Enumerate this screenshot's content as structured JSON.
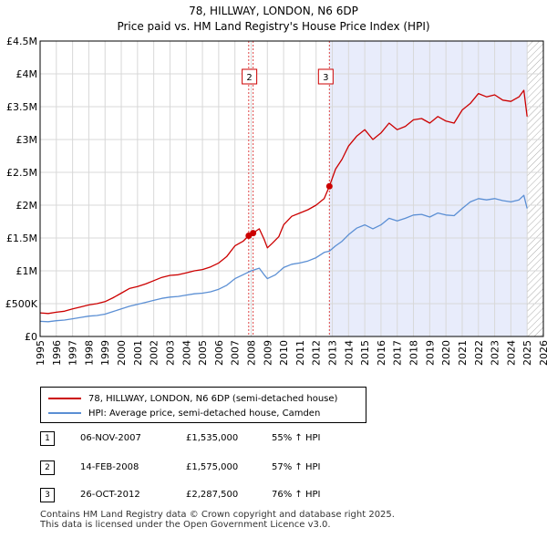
{
  "chart_data": {
    "type": "line",
    "title": "78, HILLWAY, LONDON, N6 6DP",
    "subtitle": "Price paid vs. HM Land Registry's House Price Index (HPI)",
    "xlim": [
      1995,
      2026
    ],
    "ylim": [
      0,
      4500000
    ],
    "x_ticks": [
      1995,
      1996,
      1997,
      1998,
      1999,
      2000,
      2001,
      2002,
      2003,
      2004,
      2005,
      2006,
      2007,
      2008,
      2009,
      2010,
      2011,
      2012,
      2013,
      2014,
      2015,
      2016,
      2017,
      2018,
      2019,
      2020,
      2021,
      2022,
      2023,
      2024,
      2025,
      2026
    ],
    "y_ticks": [
      {
        "value": 0,
        "label": "£0"
      },
      {
        "value": 500000,
        "label": "£500K"
      },
      {
        "value": 1000000,
        "label": "£1M"
      },
      {
        "value": 1500000,
        "label": "£1.5M"
      },
      {
        "value": 2000000,
        "label": "£2M"
      },
      {
        "value": 2500000,
        "label": "£2.5M"
      },
      {
        "value": 3000000,
        "label": "£3M"
      },
      {
        "value": 3500000,
        "label": "£3.5M"
      },
      {
        "value": 4000000,
        "label": "£4M"
      },
      {
        "value": 4500000,
        "label": "£4.5M"
      }
    ],
    "shaded_region": {
      "from": 2012.82,
      "to": 2025.0,
      "color": "#e8ecfb"
    },
    "hatched_region": {
      "from": 2025.0,
      "to": 2026.0
    },
    "series": [
      {
        "name": "78, HILLWAY, LONDON, N6 6DP (semi-detached house)",
        "color": "#cc0000",
        "points": [
          [
            1995.0,
            360000
          ],
          [
            1995.5,
            350000
          ],
          [
            1996.0,
            370000
          ],
          [
            1996.5,
            385000
          ],
          [
            1997.0,
            420000
          ],
          [
            1997.5,
            450000
          ],
          [
            1998.0,
            480000
          ],
          [
            1998.5,
            500000
          ],
          [
            1999.0,
            530000
          ],
          [
            1999.5,
            590000
          ],
          [
            2000.0,
            660000
          ],
          [
            2000.5,
            730000
          ],
          [
            2001.0,
            760000
          ],
          [
            2001.5,
            800000
          ],
          [
            2002.0,
            850000
          ],
          [
            2002.5,
            900000
          ],
          [
            2003.0,
            930000
          ],
          [
            2003.5,
            940000
          ],
          [
            2004.0,
            970000
          ],
          [
            2004.5,
            1000000
          ],
          [
            2005.0,
            1020000
          ],
          [
            2005.5,
            1060000
          ],
          [
            2006.0,
            1120000
          ],
          [
            2006.5,
            1220000
          ],
          [
            2007.0,
            1380000
          ],
          [
            2007.5,
            1450000
          ],
          [
            2007.85,
            1535000
          ],
          [
            2008.12,
            1575000
          ],
          [
            2008.5,
            1640000
          ],
          [
            2008.8,
            1480000
          ],
          [
            2009.0,
            1350000
          ],
          [
            2009.3,
            1420000
          ],
          [
            2009.7,
            1520000
          ],
          [
            2010.0,
            1700000
          ],
          [
            2010.5,
            1830000
          ],
          [
            2011.0,
            1880000
          ],
          [
            2011.5,
            1930000
          ],
          [
            2012.0,
            2000000
          ],
          [
            2012.5,
            2100000
          ],
          [
            2012.82,
            2287500
          ],
          [
            2013.2,
            2550000
          ],
          [
            2013.6,
            2700000
          ],
          [
            2014.0,
            2900000
          ],
          [
            2014.5,
            3050000
          ],
          [
            2015.0,
            3150000
          ],
          [
            2015.5,
            3000000
          ],
          [
            2016.0,
            3100000
          ],
          [
            2016.5,
            3250000
          ],
          [
            2017.0,
            3150000
          ],
          [
            2017.5,
            3200000
          ],
          [
            2018.0,
            3300000
          ],
          [
            2018.5,
            3320000
          ],
          [
            2019.0,
            3250000
          ],
          [
            2019.5,
            3350000
          ],
          [
            2020.0,
            3280000
          ],
          [
            2020.5,
            3250000
          ],
          [
            2021.0,
            3450000
          ],
          [
            2021.5,
            3550000
          ],
          [
            2022.0,
            3700000
          ],
          [
            2022.5,
            3650000
          ],
          [
            2023.0,
            3680000
          ],
          [
            2023.5,
            3600000
          ],
          [
            2024.0,
            3580000
          ],
          [
            2024.5,
            3650000
          ],
          [
            2024.8,
            3750000
          ],
          [
            2025.0,
            3350000
          ]
        ]
      },
      {
        "name": "HPI: Average price, semi-detached house, Camden",
        "color": "#5b8fd4",
        "points": [
          [
            1995.0,
            230000
          ],
          [
            1995.5,
            225000
          ],
          [
            1996.0,
            240000
          ],
          [
            1996.5,
            250000
          ],
          [
            1997.0,
            270000
          ],
          [
            1997.5,
            290000
          ],
          [
            1998.0,
            310000
          ],
          [
            1998.5,
            320000
          ],
          [
            1999.0,
            340000
          ],
          [
            1999.5,
            380000
          ],
          [
            2000.0,
            420000
          ],
          [
            2000.5,
            460000
          ],
          [
            2001.0,
            490000
          ],
          [
            2001.5,
            520000
          ],
          [
            2002.0,
            550000
          ],
          [
            2002.5,
            580000
          ],
          [
            2003.0,
            600000
          ],
          [
            2003.5,
            610000
          ],
          [
            2004.0,
            630000
          ],
          [
            2004.5,
            650000
          ],
          [
            2005.0,
            660000
          ],
          [
            2005.5,
            680000
          ],
          [
            2006.0,
            720000
          ],
          [
            2006.5,
            780000
          ],
          [
            2007.0,
            880000
          ],
          [
            2007.5,
            940000
          ],
          [
            2008.0,
            1000000
          ],
          [
            2008.5,
            1040000
          ],
          [
            2008.8,
            940000
          ],
          [
            2009.0,
            880000
          ],
          [
            2009.5,
            940000
          ],
          [
            2010.0,
            1050000
          ],
          [
            2010.5,
            1100000
          ],
          [
            2011.0,
            1120000
          ],
          [
            2011.5,
            1150000
          ],
          [
            2012.0,
            1200000
          ],
          [
            2012.5,
            1280000
          ],
          [
            2012.82,
            1300000
          ],
          [
            2013.2,
            1380000
          ],
          [
            2013.6,
            1450000
          ],
          [
            2014.0,
            1550000
          ],
          [
            2014.5,
            1650000
          ],
          [
            2015.0,
            1700000
          ],
          [
            2015.5,
            1640000
          ],
          [
            2016.0,
            1700000
          ],
          [
            2016.5,
            1800000
          ],
          [
            2017.0,
            1760000
          ],
          [
            2017.5,
            1800000
          ],
          [
            2018.0,
            1850000
          ],
          [
            2018.5,
            1860000
          ],
          [
            2019.0,
            1820000
          ],
          [
            2019.5,
            1880000
          ],
          [
            2020.0,
            1850000
          ],
          [
            2020.5,
            1840000
          ],
          [
            2021.0,
            1950000
          ],
          [
            2021.5,
            2050000
          ],
          [
            2022.0,
            2100000
          ],
          [
            2022.5,
            2080000
          ],
          [
            2023.0,
            2100000
          ],
          [
            2023.5,
            2070000
          ],
          [
            2024.0,
            2050000
          ],
          [
            2024.5,
            2080000
          ],
          [
            2024.8,
            2150000
          ],
          [
            2025.0,
            1950000
          ]
        ]
      }
    ],
    "transactions": [
      {
        "num": "1",
        "x": 2007.85,
        "y": 1535000,
        "date": "06-NOV-2007",
        "price": "£1,535,000",
        "hpi": "55% ↑ HPI",
        "box": false
      },
      {
        "num": "2",
        "x": 2008.12,
        "y": 1575000,
        "date": "14-FEB-2008",
        "price": "£1,575,000",
        "hpi": "57% ↑ HPI",
        "box": true
      },
      {
        "num": "3",
        "x": 2012.82,
        "y": 2287500,
        "date": "26-OCT-2012",
        "price": "£2,287,500",
        "hpi": "76% ↑ HPI",
        "box": true
      }
    ]
  },
  "legend": {
    "red_label": "78, HILLWAY, LONDON, N6 6DP (semi-detached house)",
    "blue_label": "HPI: Average price, semi-detached house, Camden"
  },
  "footer": {
    "line1": "Contains HM Land Registry data © Crown copyright and database right 2025.",
    "line2": "This data is licensed under the Open Government Licence v3.0."
  }
}
